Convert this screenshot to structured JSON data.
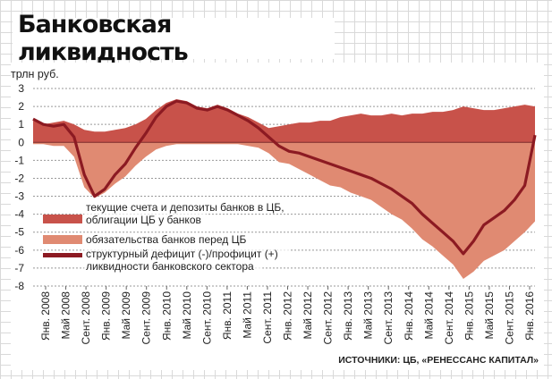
{
  "title": "Банковская ликвидность",
  "colors": {
    "accounts": "#c8524a",
    "obligations": "#e08a72",
    "balance": "#8c1a22"
  },
  "chart_data": {
    "type": "area",
    "title": "Банковская ликвидность",
    "ylabel": "трлн руб.",
    "ylim": [
      -8,
      3
    ],
    "yticks": [
      3,
      2,
      1,
      0,
      -1,
      -2,
      -3,
      -4,
      -5,
      -6,
      -7,
      -8
    ],
    "grid": true,
    "legend_position": "inside-bottom-left",
    "source": "ИСТОЧНИКИ: ЦБ, «РЕНЕССАНС КАПИТАЛ»",
    "xticks": [
      "Янв. 2008",
      "Май 2008",
      "Сент. 2008",
      "Янв. 2009",
      "Май 2009",
      "Сент. 2009",
      "Янв. 2010",
      "Май 2010",
      "Сент. 2010",
      "Янв. 2011",
      "Май 2011",
      "Сент. 2011",
      "Янв. 2012",
      "Май 2012",
      "Сент. 2012",
      "Янв. 2013",
      "Май 2013",
      "Сент. 2013",
      "Янв. 2014",
      "Май 2014",
      "Сент. 2014",
      "Янв. 2015",
      "Май 2015",
      "Сент. 2015",
      "Янв. 2016"
    ],
    "x": [
      "2008-01",
      "2008-03",
      "2008-05",
      "2008-07",
      "2008-09",
      "2008-11",
      "2009-01",
      "2009-03",
      "2009-05",
      "2009-07",
      "2009-09",
      "2009-11",
      "2010-01",
      "2010-03",
      "2010-05",
      "2010-07",
      "2010-09",
      "2010-11",
      "2011-01",
      "2011-03",
      "2011-05",
      "2011-07",
      "2011-09",
      "2011-11",
      "2012-01",
      "2012-03",
      "2012-05",
      "2012-07",
      "2012-09",
      "2012-11",
      "2013-01",
      "2013-03",
      "2013-05",
      "2013-07",
      "2013-09",
      "2013-11",
      "2014-01",
      "2014-03",
      "2014-05",
      "2014-07",
      "2014-09",
      "2014-11",
      "2015-01",
      "2015-03",
      "2015-05",
      "2015-07",
      "2015-09",
      "2015-11",
      "2016-01",
      "2016-03"
    ],
    "series": [
      {
        "name": "текущие счета и депозиты банков в ЦБ, облигации ЦБ у банков",
        "values": [
          1.2,
          1.0,
          1.1,
          1.2,
          1.0,
          0.7,
          0.6,
          0.6,
          0.7,
          0.8,
          1.0,
          1.3,
          1.8,
          2.2,
          2.4,
          2.3,
          2.0,
          1.9,
          2.1,
          1.9,
          1.6,
          1.4,
          1.1,
          0.8,
          0.9,
          1.0,
          1.1,
          1.1,
          1.2,
          1.2,
          1.4,
          1.5,
          1.6,
          1.5,
          1.5,
          1.6,
          1.5,
          1.6,
          1.6,
          1.7,
          1.7,
          1.8,
          2.0,
          1.9,
          1.8,
          1.8,
          1.9,
          2.0,
          2.1,
          2.0
        ]
      },
      {
        "name": "обязательства банков перед ЦБ",
        "values": [
          -0.1,
          -0.1,
          -0.2,
          -0.2,
          -0.8,
          -2.5,
          -3.1,
          -2.8,
          -2.3,
          -1.9,
          -1.3,
          -0.8,
          -0.4,
          -0.2,
          -0.1,
          -0.1,
          -0.1,
          -0.1,
          -0.1,
          -0.1,
          -0.1,
          -0.2,
          -0.3,
          -0.6,
          -1.1,
          -1.2,
          -1.5,
          -1.8,
          -2.1,
          -2.4,
          -2.5,
          -2.8,
          -3.0,
          -3.2,
          -3.6,
          -4.0,
          -4.3,
          -4.8,
          -5.4,
          -5.8,
          -6.3,
          -6.8,
          -7.6,
          -7.2,
          -6.6,
          -6.3,
          -6.0,
          -5.5,
          -5.0,
          -4.4
        ]
      },
      {
        "name": "структурный дефицит (-)/профицит (+) ликвидности банковского сектора",
        "values": [
          1.3,
          1.0,
          0.9,
          1.0,
          0.3,
          -1.8,
          -3.0,
          -2.6,
          -1.8,
          -1.2,
          -0.3,
          0.5,
          1.4,
          2.0,
          2.3,
          2.2,
          1.9,
          1.8,
          2.0,
          1.8,
          1.5,
          1.2,
          0.8,
          0.3,
          -0.2,
          -0.5,
          -0.6,
          -0.8,
          -1.0,
          -1.2,
          -1.4,
          -1.6,
          -1.8,
          -2.0,
          -2.3,
          -2.6,
          -3.0,
          -3.4,
          -4.0,
          -4.5,
          -5.0,
          -5.5,
          -6.2,
          -5.5,
          -4.6,
          -4.2,
          -3.8,
          -3.2,
          -2.4,
          0.4
        ]
      }
    ]
  }
}
